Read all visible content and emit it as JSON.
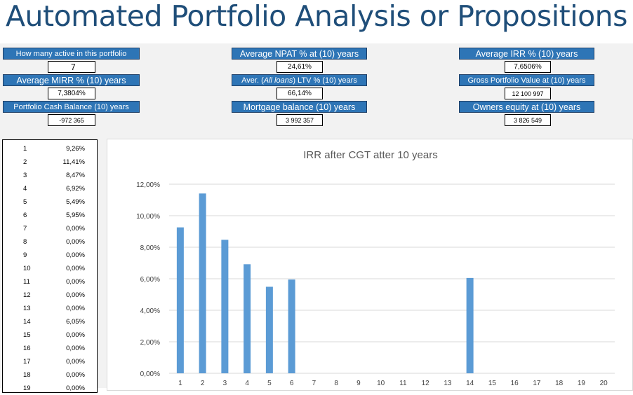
{
  "title": "Automated Portfolio Analysis or Propositions",
  "metrics": {
    "active_label": "How many active in this portfolio",
    "active_value": "7",
    "npat_label": "Average NPAT % at (10) years",
    "npat_value": "24,61%",
    "irr_label": "Average IRR % (10) years",
    "irr_value": "7,6506%",
    "mirr_label": "Average MIRR % (10) years",
    "mirr_value": "7,3804%",
    "ltv_label_pre": "Aver. (",
    "ltv_label_em": "All loans",
    "ltv_label_post": ") LTV % (10) years",
    "ltv_value": "66,14%",
    "gross_label": "Gross Portfolio Value at (10) years",
    "gross_value": "12 100 997",
    "cash_label": "Portfolio Cash Balance (10) years",
    "cash_value": "-972 365",
    "mortgage_label": "Mortgage balance (10) years",
    "mortgage_value": "3 992 357",
    "equity_label": "Owners equity at (10) years",
    "equity_value": "3 826 549"
  },
  "side_table": [
    {
      "n": "1",
      "v": "9,26%"
    },
    {
      "n": "2",
      "v": "11,41%"
    },
    {
      "n": "3",
      "v": "8,47%"
    },
    {
      "n": "4",
      "v": "6,92%"
    },
    {
      "n": "5",
      "v": "5,49%"
    },
    {
      "n": "6",
      "v": "5,95%"
    },
    {
      "n": "7",
      "v": "0,00%"
    },
    {
      "n": "8",
      "v": "0,00%"
    },
    {
      "n": "9",
      "v": "0,00%"
    },
    {
      "n": "10",
      "v": "0,00%"
    },
    {
      "n": "11",
      "v": "0,00%"
    },
    {
      "n": "12",
      "v": "0,00%"
    },
    {
      "n": "13",
      "v": "0,00%"
    },
    {
      "n": "14",
      "v": "6,05%"
    },
    {
      "n": "15",
      "v": "0,00%"
    },
    {
      "n": "16",
      "v": "0,00%"
    },
    {
      "n": "17",
      "v": "0,00%"
    },
    {
      "n": "18",
      "v": "0,00%"
    },
    {
      "n": "19",
      "v": "0,00%"
    }
  ],
  "chart_data": {
    "type": "bar",
    "title": "IRR after CGT atter 10 years",
    "categories": [
      "1",
      "2",
      "3",
      "4",
      "5",
      "6",
      "7",
      "8",
      "9",
      "10",
      "11",
      "12",
      "13",
      "14",
      "15",
      "16",
      "17",
      "18",
      "19",
      "20"
    ],
    "values": [
      9.26,
      11.41,
      8.47,
      6.92,
      5.49,
      5.95,
      0,
      0,
      0,
      0,
      0,
      0,
      0,
      6.05,
      0,
      0,
      0,
      0,
      0,
      0
    ],
    "y_ticks": [
      "0,00%",
      "2,00%",
      "4,00%",
      "6,00%",
      "8,00%",
      "10,00%",
      "12,00%"
    ],
    "ylim": [
      0,
      12
    ],
    "bar_color": "#5b9bd5",
    "grid": true
  }
}
